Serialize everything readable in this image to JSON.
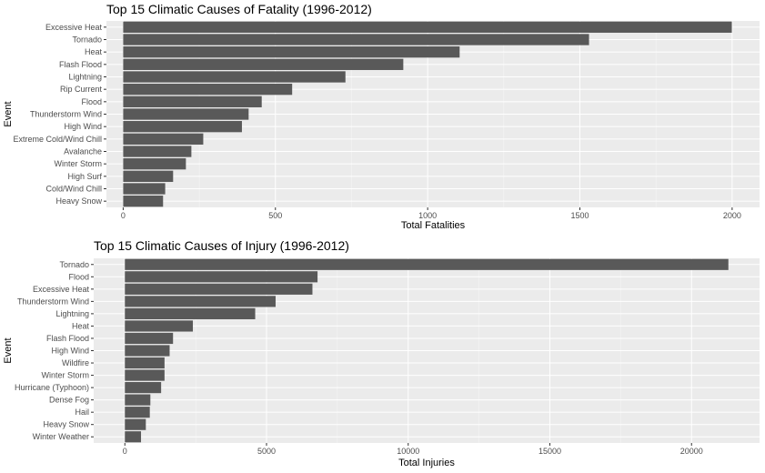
{
  "colors": {
    "panel": "#ebebeb",
    "grid_major": "#ffffff",
    "bar": "#595959",
    "tick": "#333333",
    "text": "#4d4d4d"
  },
  "chart_data": [
    {
      "type": "bar",
      "orientation": "horizontal",
      "title": "Top 15 Climatic Causes of Fatality (1996-2012)",
      "xlabel": "Total Fatalities",
      "ylabel": "Event",
      "categories": [
        "Excessive Heat",
        "Tornado",
        "Heat",
        "Flash Flood",
        "Lightning",
        "Rip Current",
        "Flood",
        "Thunderstorm Wind",
        "High Wind",
        "Extreme Cold/Wind Chill",
        "Avalanche",
        "Winter Storm",
        "High Surf",
        "Cold/Wind Chill",
        "Heavy Snow"
      ],
      "values": [
        1999,
        1530,
        1105,
        920,
        730,
        555,
        455,
        412,
        390,
        263,
        224,
        206,
        164,
        138,
        131
      ],
      "xlim": [
        -55,
        2090
      ],
      "xticks": [
        0,
        500,
        1000,
        1500,
        2000
      ],
      "xtick_labels": [
        "0",
        "500",
        "1000",
        "1500",
        "2000"
      ],
      "grid": true,
      "legend": "none"
    },
    {
      "type": "bar",
      "orientation": "horizontal",
      "title": "Top 15 Climatic Causes of Injury (1996-2012)",
      "xlabel": "Total Injuries",
      "ylabel": "Event",
      "categories": [
        "Tornado",
        "Flood",
        "Excessive Heat",
        "Thunderstorm Wind",
        "Lightning",
        "Heat",
        "Flash Flood",
        "High Wind",
        "Wildfire",
        "Winter Storm",
        "Hurricane (Typhoon)",
        "Dense Fog",
        "Hail",
        "Heavy Snow",
        "Winter Weather"
      ],
      "values": [
        21300,
        6800,
        6620,
        5320,
        4600,
        2400,
        1700,
        1580,
        1400,
        1400,
        1280,
        900,
        880,
        740,
        570
      ],
      "xlim": [
        -1100,
        22400
      ],
      "xticks": [
        0,
        5000,
        10000,
        15000,
        20000
      ],
      "xtick_labels": [
        "0",
        "5000",
        "10000",
        "15000",
        "20000"
      ],
      "grid": true,
      "legend": "none"
    }
  ]
}
